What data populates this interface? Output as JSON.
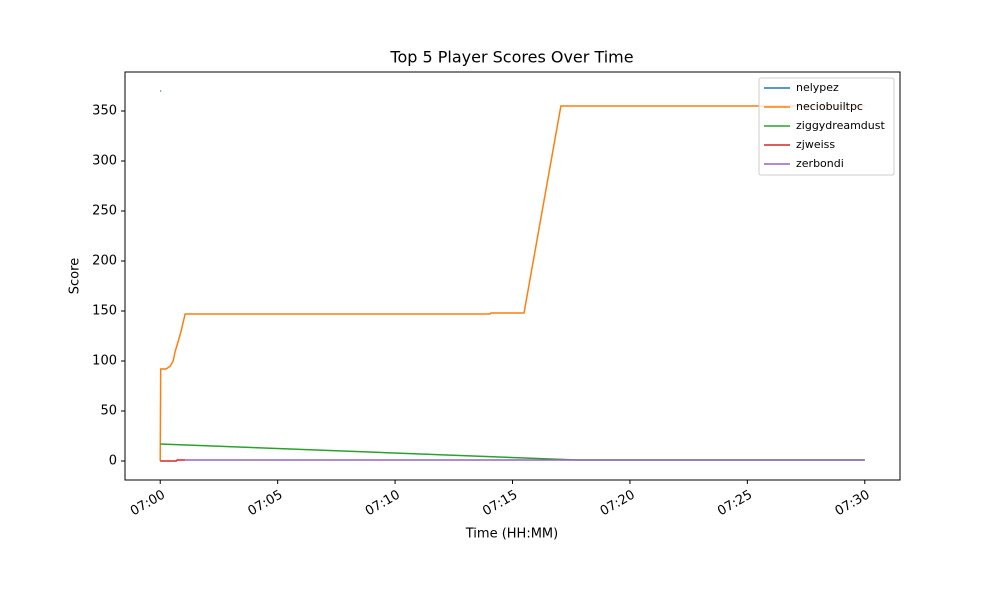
{
  "chart_data": {
    "type": "line",
    "title": "Top 5 Player Scores Over Time",
    "x_label": "Time (HH:MM)",
    "y_label": "Score",
    "xlim": [
      -1.5,
      31.5
    ],
    "ylim": [
      -19,
      389
    ],
    "xticks": [
      {
        "value": 0,
        "label": "07:00"
      },
      {
        "value": 5,
        "label": "07:05"
      },
      {
        "value": 10,
        "label": "07:10"
      },
      {
        "value": 15,
        "label": "07:15"
      },
      {
        "value": 20,
        "label": "07:20"
      },
      {
        "value": 25,
        "label": "07:25"
      },
      {
        "value": 30,
        "label": "07:30"
      }
    ],
    "yticks": [
      0,
      50,
      100,
      150,
      200,
      250,
      300,
      350
    ],
    "legend": "upper right",
    "grid": false,
    "series": [
      {
        "name": "nelypez",
        "color": "#1f77b4",
        "x": [
          0,
          0.04
        ],
        "values": [
          370,
          370
        ]
      },
      {
        "name": "neciobuiltpc",
        "color": "#ff7f0e",
        "x": [
          0,
          0.02,
          0.25,
          0.43,
          0.55,
          0.64,
          0.77,
          0.89,
          1.06,
          14.04,
          14.08,
          15.49,
          17.06,
          30
        ],
        "values": [
          0,
          92,
          92,
          95,
          100,
          110,
          120,
          130,
          147,
          147,
          148,
          148,
          355,
          355
        ]
      },
      {
        "name": "ziggydreamdust",
        "color": "#2ca02c",
        "x": [
          0,
          17.75,
          30
        ],
        "values": [
          17,
          1,
          1
        ]
      },
      {
        "name": "zjweiss",
        "color": "#d62728",
        "x": [
          0,
          0.68,
          0.72,
          1.06
        ],
        "values": [
          0,
          0,
          1,
          1
        ]
      },
      {
        "name": "zerbondi",
        "color": "#9467bd",
        "x": [
          1.06,
          30
        ],
        "values": [
          1,
          1
        ]
      }
    ]
  }
}
